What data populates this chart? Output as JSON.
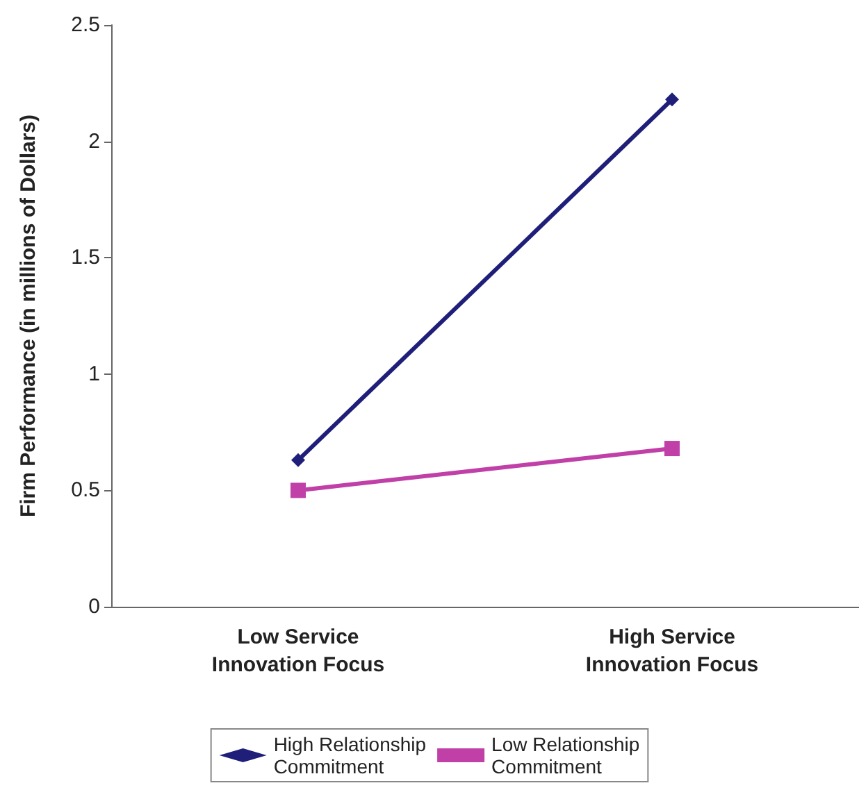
{
  "chart_data": {
    "type": "line",
    "ylabel": "Firm Performance (in millions of Dollars)",
    "categories": [
      "Low Service\nInnovation Focus",
      "High Service\nInnovation Focus"
    ],
    "series": [
      {
        "name": "High Relationship\nCommitment",
        "color": "#1f1f7a",
        "marker": "diamond",
        "values": [
          0.63,
          2.18
        ]
      },
      {
        "name": "Low Relationship\nCommitment",
        "color": "#c040a8",
        "marker": "square",
        "values": [
          0.5,
          0.68
        ]
      }
    ],
    "ylim": [
      0,
      2.5
    ],
    "yticks": [
      0,
      0.5,
      1,
      1.5,
      2,
      2.5
    ],
    "grid": false,
    "legend": "bottom"
  }
}
